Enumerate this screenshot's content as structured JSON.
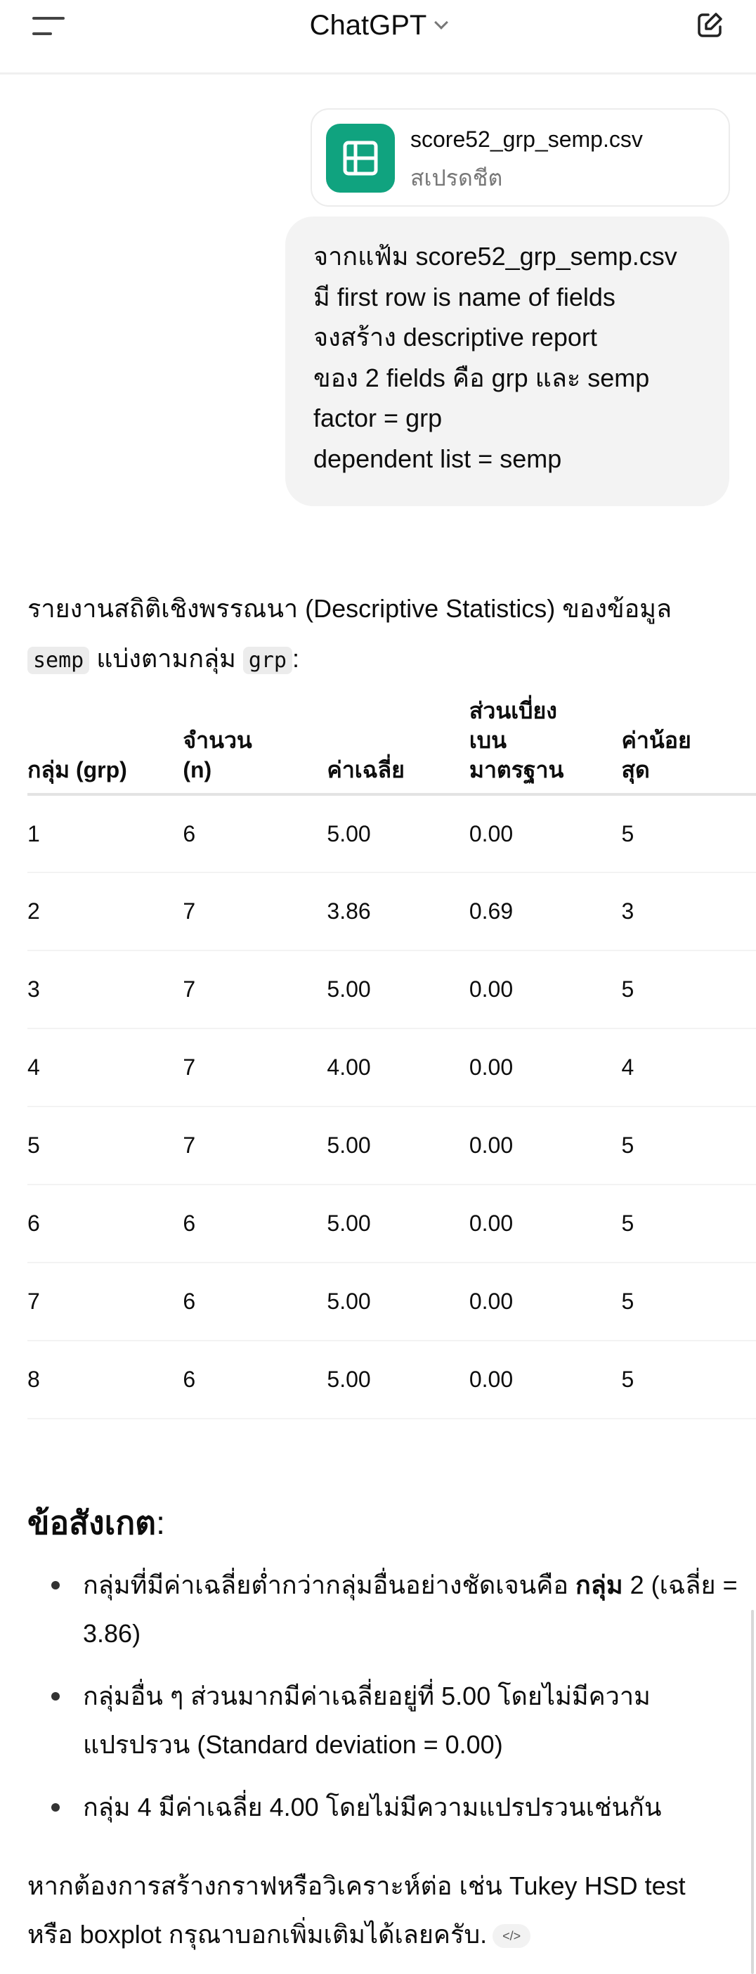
{
  "header": {
    "title": "ChatGPT",
    "menu_icon": "menu-icon",
    "chevron_icon": "chevron-down-icon",
    "new_chat_icon": "edit-icon"
  },
  "attachment": {
    "file_name": "score52_grp_semp.csv",
    "file_type": "สเปรดชีต",
    "icon": "spreadsheet-icon",
    "icon_color": "#10a37f"
  },
  "user_message": {
    "lines": [
      "จากแฟ้ม score52_grp_semp.csv",
      "มี first row is name of fields",
      "จงสร้าง descriptive report",
      "ของ 2 fields คือ grp และ semp",
      "factor = grp",
      "dependent list = semp"
    ]
  },
  "response": {
    "intro_pre": "รายงานสถิติเชิงพรรณนา (Descriptive Statistics) ของข้อมูล ",
    "intro_code1": "semp",
    "intro_mid": " แบ่งตามกลุ่ม ",
    "intro_code2": "grp",
    "intro_post": ":",
    "table": {
      "headers": [
        [
          "กลุ่ม (grp)"
        ],
        [
          "จำนวน",
          "(n)"
        ],
        [
          "ค่าเฉลี่ย"
        ],
        [
          "ส่วนเบี่ยง",
          "เบน",
          "มาตรฐาน"
        ],
        [
          "ค่าน้อย",
          "สุด"
        ]
      ],
      "rows": [
        [
          "1",
          "6",
          "5.00",
          "0.00",
          "5"
        ],
        [
          "2",
          "7",
          "3.86",
          "0.69",
          "3"
        ],
        [
          "3",
          "7",
          "5.00",
          "0.00",
          "5"
        ],
        [
          "4",
          "7",
          "4.00",
          "0.00",
          "4"
        ],
        [
          "5",
          "7",
          "5.00",
          "0.00",
          "5"
        ],
        [
          "6",
          "6",
          "5.00",
          "0.00",
          "5"
        ],
        [
          "7",
          "6",
          "5.00",
          "0.00",
          "5"
        ],
        [
          "8",
          "6",
          "5.00",
          "0.00",
          "5"
        ]
      ]
    },
    "observations_heading": "ข้อสังเกต",
    "observations_colon": ":",
    "bullets": [
      {
        "pre": "กลุ่มที่มีค่าเฉลี่ยต่ำกว่ากลุ่มอื่นอย่างชัดเจนคือ ",
        "bold": "กลุ่ม",
        "post": " 2 (เฉลี่ย = 3.86)"
      },
      {
        "pre": "กลุ่มอื่น ๆ ส่วนมากมีค่าเฉลี่ยอยู่ที่ 5.00 โดยไม่มีความแปรปรวน (Standard deviation = 0.00)",
        "bold": "",
        "post": ""
      },
      {
        "pre": "กลุ่ม 4 มีค่าเฉลี่ย 4.00 โดยไม่มีความแปรปรวนเช่นกัน",
        "bold": "",
        "post": ""
      }
    ],
    "final": "หากต้องการสร้างกราฟหรือวิเคราะห์ต่อ เช่น Tukey HSD test หรือ boxplot กรุณาบอกเพิ่มเติมได้เลยครับ.",
    "source_icon": "</>"
  }
}
